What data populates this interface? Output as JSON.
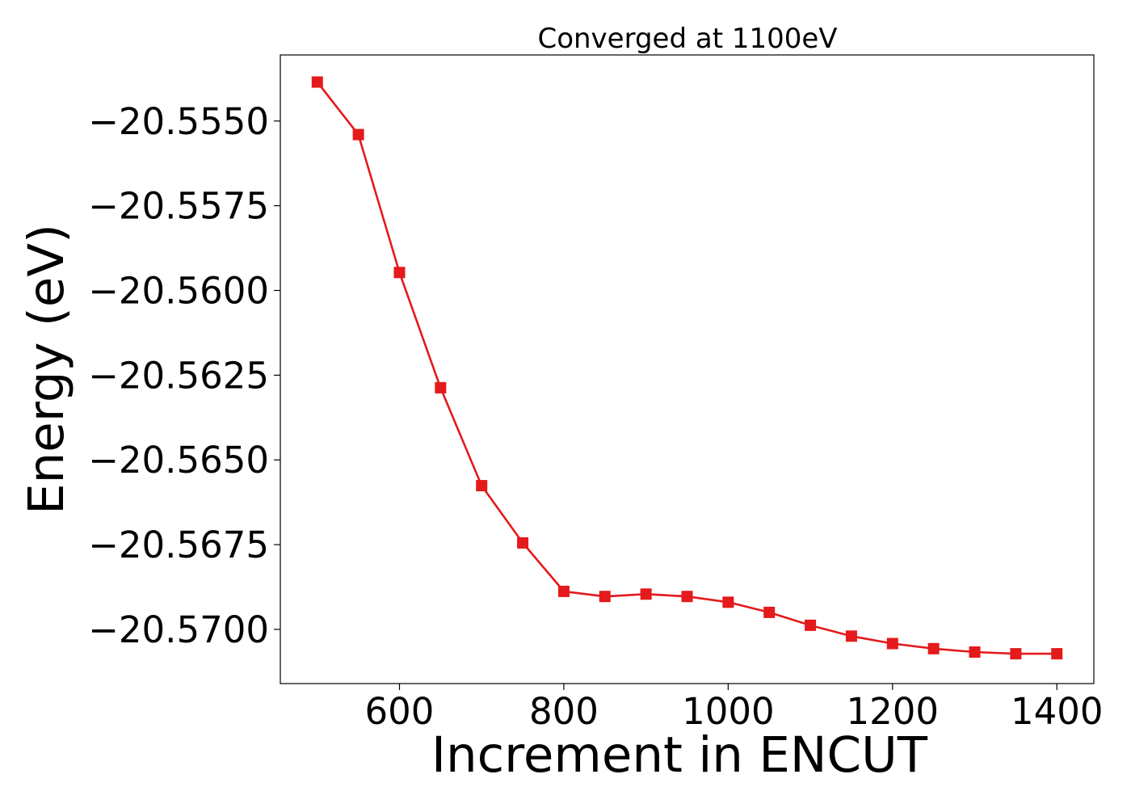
{
  "chart_data": {
    "type": "line",
    "title": "Converged at 1100eV",
    "xlabel": "Increment in ENCUT",
    "ylabel": "Energy (eV)",
    "xlim": [
      455,
      1445
    ],
    "ylim": [
      -20.5716,
      -20.55305
    ],
    "xticks": [
      600,
      800,
      1000,
      1200,
      1400
    ],
    "yticks": [
      -20.555,
      -20.5575,
      -20.56,
      -20.5625,
      -20.565,
      -20.5675,
      -20.57
    ],
    "ytick_labels": [
      "−20.5550",
      "−20.5575",
      "−20.5600",
      "−20.5625",
      "−20.5650",
      "−20.5675",
      "−20.5700"
    ],
    "grid": false,
    "series": [
      {
        "marker": "square",
        "color": "#e41a1c",
        "x": [
          500,
          550,
          600,
          650,
          700,
          750,
          800,
          850,
          900,
          950,
          1000,
          1050,
          1100,
          1150,
          1200,
          1250,
          1300,
          1350,
          1400
        ],
        "y": [
          -20.55385,
          -20.5554,
          -20.55947,
          -20.56287,
          -20.56576,
          -20.56745,
          -20.56888,
          -20.56903,
          -20.56896,
          -20.56903,
          -20.5692,
          -20.5695,
          -20.56988,
          -20.5702,
          -20.57042,
          -20.57057,
          -20.57067,
          -20.57072,
          -20.57072
        ]
      }
    ]
  }
}
